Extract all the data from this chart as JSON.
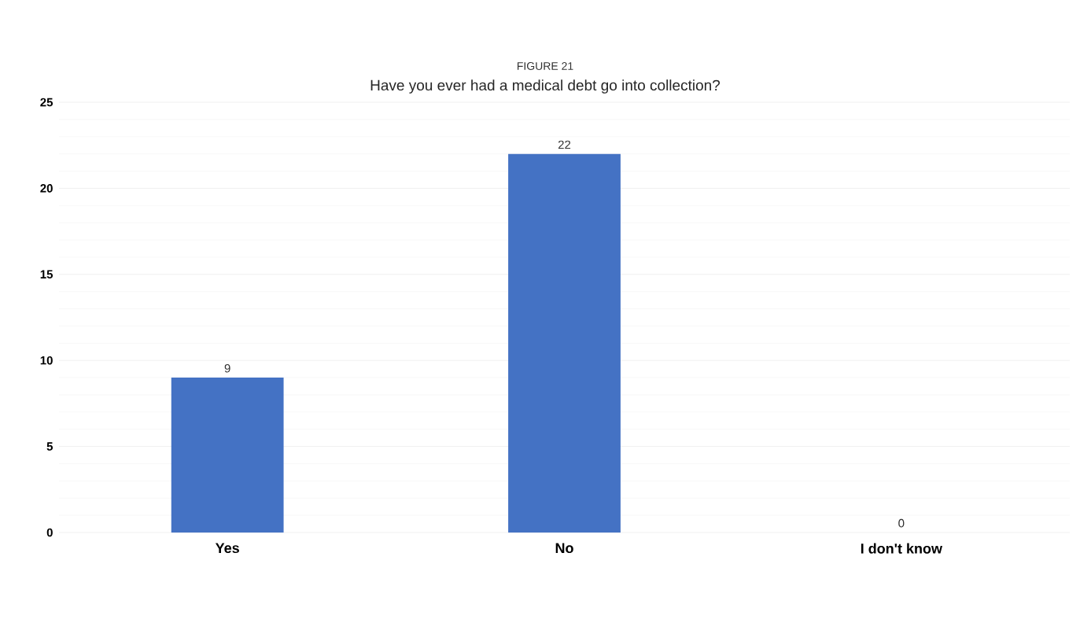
{
  "chart_data": {
    "type": "bar",
    "title": "FIGURE 21",
    "subtitle": "Have you ever had a medical debt go into collection?",
    "categories": [
      "Yes",
      "No",
      "I don't know"
    ],
    "values": [
      9,
      22,
      0
    ],
    "color": "#4472c4",
    "ylim": [
      0,
      25
    ],
    "yticks": [
      0,
      5,
      10,
      15,
      20,
      25
    ],
    "grid": "y",
    "data_labels": true
  }
}
